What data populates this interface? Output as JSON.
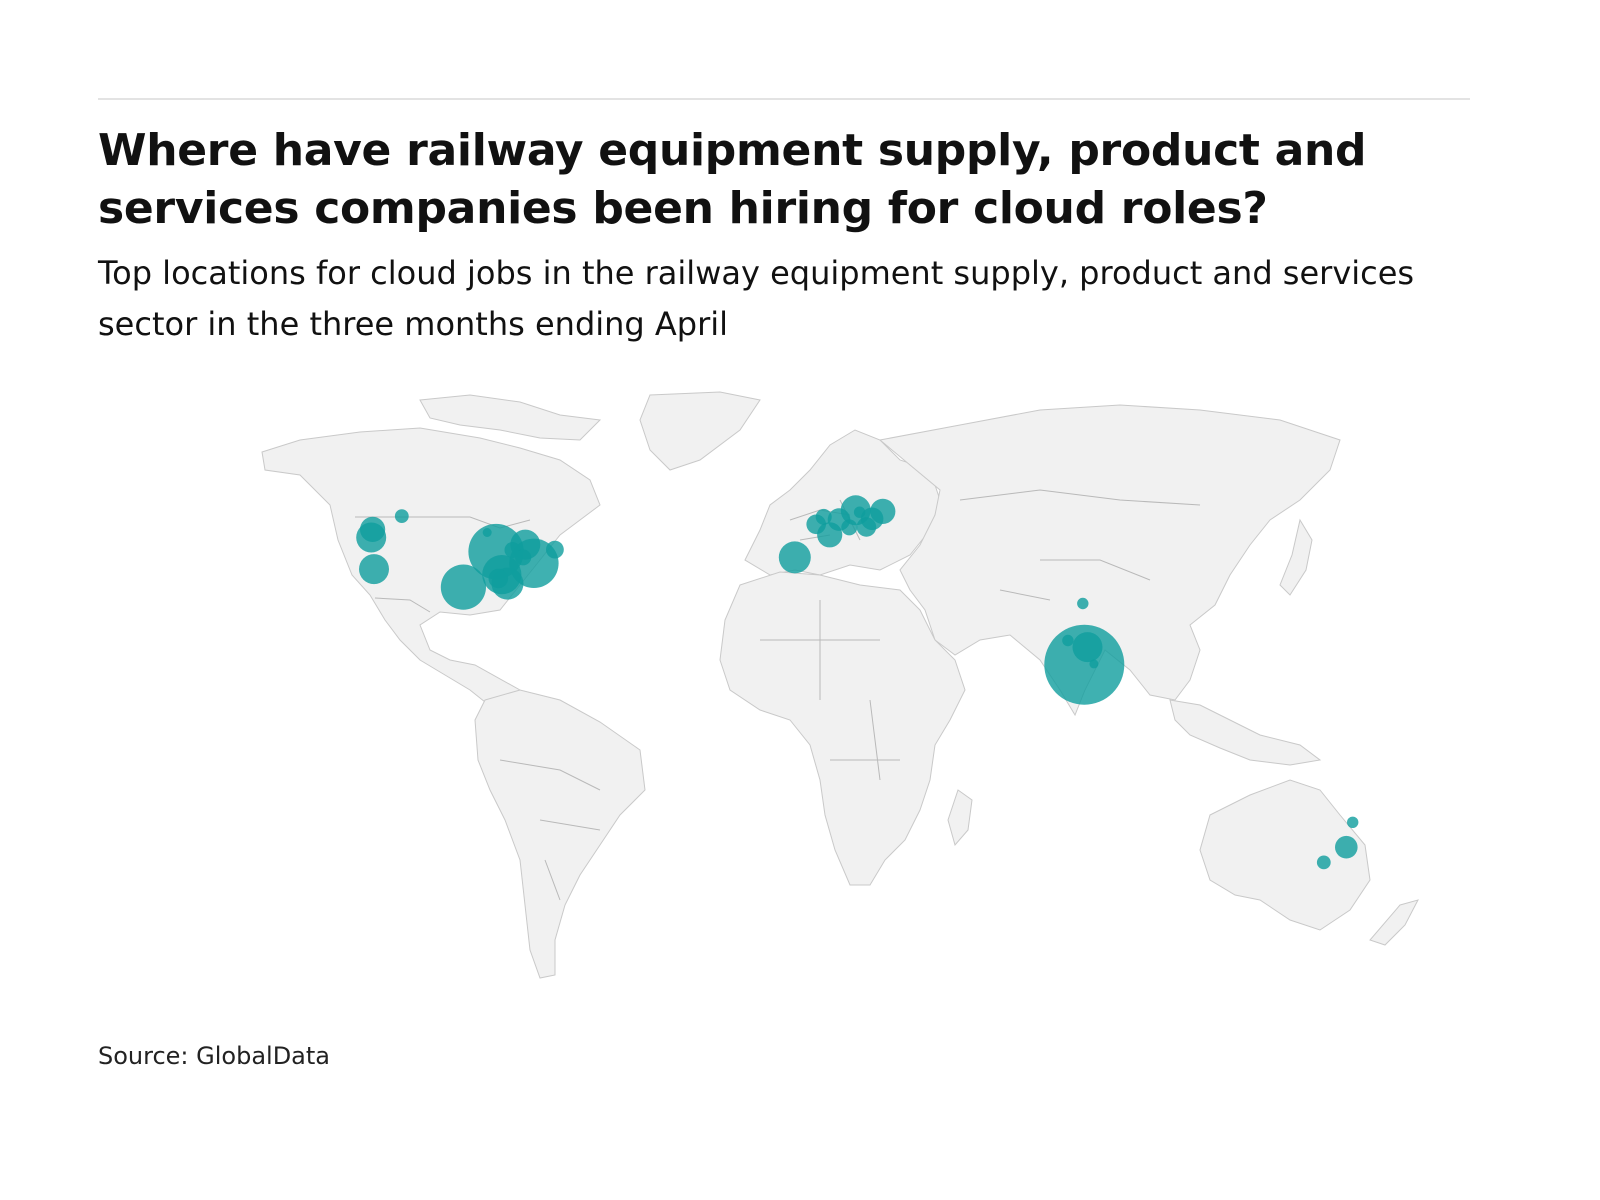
{
  "header": {
    "title": "Where have railway equipment supply, product and services companies been hiring for cloud roles?",
    "subtitle": "Top locations for cloud jobs in the railway equipment supply, product and services sector in the three months ending April"
  },
  "footer": {
    "source": "Source: GlobalData"
  },
  "colors": {
    "bubble": "#0f9d9d",
    "land": "#f1f1f1",
    "border": "#c9c9c9"
  },
  "chart_data": {
    "type": "bubble-map",
    "title": "Where have railway equipment supply, product and services companies been hiring for cloud roles?",
    "subtitle": "Top locations for cloud jobs in the railway equipment supply, product and services sector in the three months ending April",
    "points": [
      {
        "lon": -122.3,
        "lat": 47.6,
        "value": 10
      },
      {
        "lon": -122.7,
        "lat": 45.5,
        "value": 14
      },
      {
        "lon": -121.9,
        "lat": 37.4,
        "value": 14
      },
      {
        "lon": -114.1,
        "lat": 51.0,
        "value": 3
      },
      {
        "lon": -96.8,
        "lat": 32.8,
        "value": 32
      },
      {
        "lon": -87.6,
        "lat": 41.9,
        "value": 48
      },
      {
        "lon": -86.0,
        "lat": 36.0,
        "value": 24
      },
      {
        "lon": -84.4,
        "lat": 33.7,
        "value": 16
      },
      {
        "lon": -83.0,
        "lat": 42.3,
        "value": 4
      },
      {
        "lon": -79.4,
        "lat": 43.7,
        "value": 14
      },
      {
        "lon": -80.0,
        "lat": 40.4,
        "value": 4
      },
      {
        "lon": -77.0,
        "lat": 38.9,
        "value": 38
      },
      {
        "lon": -71.1,
        "lat": 42.4,
        "value": 5
      },
      {
        "lon": -90.1,
        "lat": 46.8,
        "value": 1
      },
      {
        "lon": -87.0,
        "lat": 35.0,
        "value": 6
      },
      {
        "lon": -3.7,
        "lat": 40.4,
        "value": 16
      },
      {
        "lon": 2.3,
        "lat": 48.9,
        "value": 6
      },
      {
        "lon": 4.4,
        "lat": 50.8,
        "value": 4
      },
      {
        "lon": 6.1,
        "lat": 46.2,
        "value": 10
      },
      {
        "lon": 8.7,
        "lat": 50.1,
        "value": 8
      },
      {
        "lon": 11.6,
        "lat": 48.1,
        "value": 4
      },
      {
        "lon": 13.4,
        "lat": 52.5,
        "value": 14
      },
      {
        "lon": 16.4,
        "lat": 48.2,
        "value": 6
      },
      {
        "lon": 18.0,
        "lat": 50.3,
        "value": 8
      },
      {
        "lon": 21.0,
        "lat": 52.2,
        "value": 10
      },
      {
        "lon": 14.5,
        "lat": 52.0,
        "value": 2
      },
      {
        "lon": 77.2,
        "lat": 28.6,
        "value": 2
      },
      {
        "lon": 73.0,
        "lat": 19.1,
        "value": 2
      },
      {
        "lon": 78.5,
        "lat": 17.4,
        "value": 14
      },
      {
        "lon": 77.6,
        "lat": 12.9,
        "value": 100
      },
      {
        "lon": 80.3,
        "lat": 13.1,
        "value": 1
      },
      {
        "lon": 144.9,
        "lat": -37.8,
        "value": 3
      },
      {
        "lon": 151.2,
        "lat": -33.9,
        "value": 8
      },
      {
        "lon": 153.0,
        "lat": -27.5,
        "value": 2
      }
    ]
  }
}
